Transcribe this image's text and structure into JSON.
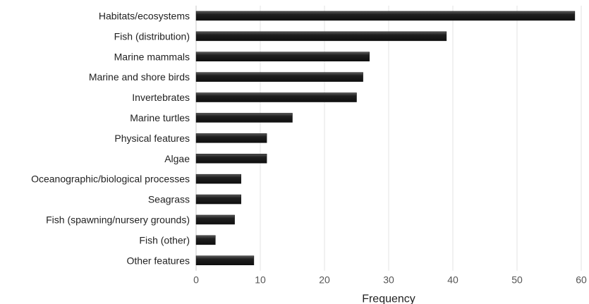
{
  "chart_data": {
    "type": "bar",
    "orientation": "horizontal",
    "categories": [
      "Habitats/ecosystems",
      "Fish (distribution)",
      "Marine mammals",
      "Marine and shore birds",
      "Invertebrates",
      "Marine turtles",
      "Physical features",
      "Algae",
      "Oceanographic/biological processes",
      "Seagrass",
      "Fish (spawning/nursery grounds)",
      "Fish (other)",
      "Other features"
    ],
    "values": [
      59,
      39,
      27,
      26,
      25,
      15,
      11,
      11,
      7,
      7,
      6,
      3,
      9
    ],
    "title": "",
    "xlabel": "Frequency",
    "ylabel": "",
    "xlim": [
      0,
      60
    ],
    "xticks": [
      0,
      10,
      20,
      30,
      40,
      50,
      60
    ],
    "grid": "vertical",
    "bar_color": "#2b2b2b"
  }
}
